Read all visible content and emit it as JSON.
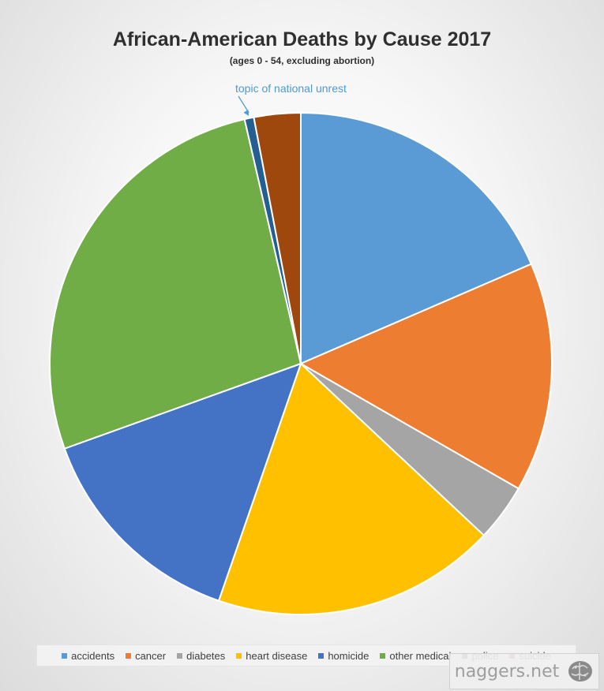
{
  "chart_data": {
    "type": "pie",
    "title": "African-American Deaths by Cause 2017",
    "subtitle": "(ages 0 - 54, excluding abortion)",
    "annotation": "topic of national unrest",
    "annotation_target": "police",
    "legend_position": "bottom",
    "categories": [
      "accidents",
      "cancer",
      "diabetes",
      "heart disease",
      "homicide",
      "other medical",
      "police",
      "suicide"
    ],
    "values": [
      18.5,
      14.8,
      3.7,
      18.3,
      14.2,
      26.9,
      0.6,
      3.0
    ],
    "colors": [
      "#5b9bd5",
      "#ed7d31",
      "#a5a5a5",
      "#ffc000",
      "#4472c4",
      "#70ad47",
      "#255e91",
      "#9e480e"
    ]
  },
  "watermark": {
    "text": "naggers.net",
    "logo_icon": "brain-icon"
  }
}
